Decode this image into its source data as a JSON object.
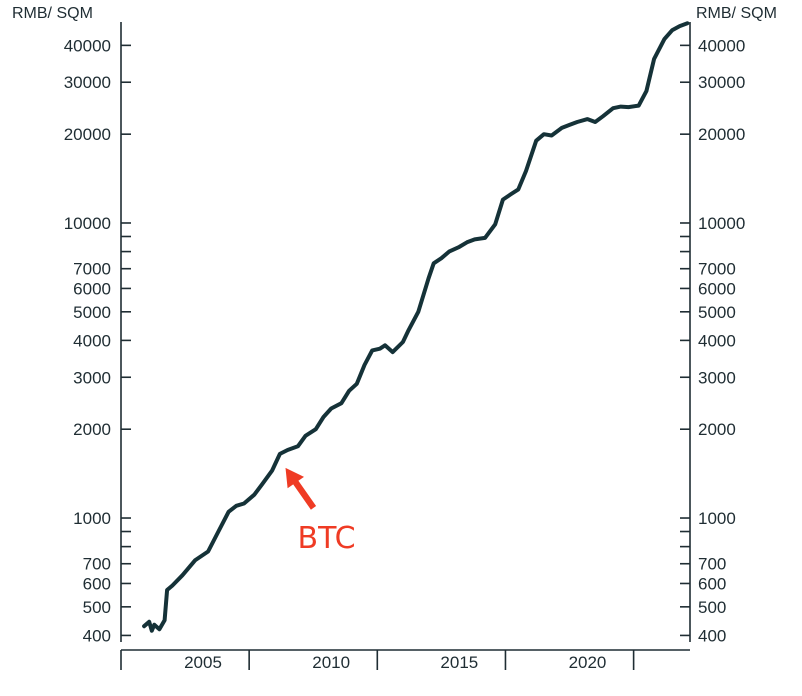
{
  "chart_data": {
    "type": "line",
    "title": "",
    "y_scale": "log",
    "ylabel_left": "RMB/ SQM",
    "ylabel_right": "RMB/ SQM",
    "ylim": [
      380,
      48000
    ],
    "xlim": [
      2001.8,
      2024
    ],
    "y_ticks_labeled": [
      "400",
      "500",
      "600",
      "700",
      "1000",
      "2000",
      "3000",
      "4000",
      "5000",
      "6000",
      "7000",
      "10000",
      "20000",
      "30000",
      "40000"
    ],
    "y_tick_values": [
      400,
      500,
      600,
      700,
      800,
      900,
      1000,
      2000,
      3000,
      4000,
      5000,
      6000,
      7000,
      8000,
      9000,
      10000,
      20000,
      30000,
      40000
    ],
    "x_ticks": [
      "2005",
      "2010",
      "2015",
      "2020"
    ],
    "x_tick_values": [
      2005,
      2010,
      2015,
      2020
    ],
    "x_boundaries": [
      2001.8,
      2006.8,
      2011.8,
      2016.8,
      2021.8
    ],
    "grid": false,
    "legend": "none",
    "line_color": "#153238",
    "annotation": {
      "text": "BTC",
      "x": 2008.1,
      "y": 1550,
      "color": "#ef3b24"
    },
    "series": [
      {
        "x": [
          2002.7,
          2002.9,
          2003.0,
          2003.1,
          2003.3,
          2003.5,
          2003.6,
          2003.8,
          2004.2,
          2004.7,
          2005.2,
          2005.6,
          2006.0,
          2006.3,
          2006.6,
          2007.0,
          2007.3,
          2007.7,
          2008.0,
          2008.3,
          2008.7,
          2009.0,
          2009.4,
          2009.7,
          2010.0,
          2010.4,
          2010.7,
          2011.0,
          2011.3,
          2011.6,
          2011.9,
          2012.1,
          2012.4,
          2012.8,
          2013.0,
          2013.4,
          2013.8,
          2014.0,
          2014.3,
          2014.6,
          2015.0,
          2015.3,
          2015.6,
          2016.0,
          2016.4,
          2016.7,
          2017.0,
          2017.3,
          2017.6,
          2018.0,
          2018.3,
          2018.6,
          2019.0,
          2019.3,
          2019.6,
          2020.0,
          2020.3,
          2020.6,
          2021.0,
          2021.3,
          2021.6,
          2022.0,
          2022.3,
          2022.6,
          2023.0,
          2023.3,
          2023.6,
          2023.9
        ],
        "y": [
          430,
          445,
          415,
          435,
          420,
          450,
          570,
          590,
          640,
          720,
          770,
          900,
          1050,
          1100,
          1120,
          1200,
          1300,
          1450,
          1650,
          1700,
          1750,
          1900,
          2000,
          2200,
          2350,
          2450,
          2700,
          2850,
          3300,
          3700,
          3750,
          3850,
          3650,
          3950,
          4300,
          5000,
          6500,
          7300,
          7600,
          8000,
          8300,
          8600,
          8800,
          8900,
          9900,
          12000,
          12500,
          13000,
          15000,
          19000,
          20000,
          19800,
          21000,
          21500,
          22000,
          22500,
          22000,
          23000,
          24500,
          24800,
          24700,
          25000,
          28000,
          36000,
          42000,
          45000,
          46500,
          47500
        ]
      }
    ]
  }
}
